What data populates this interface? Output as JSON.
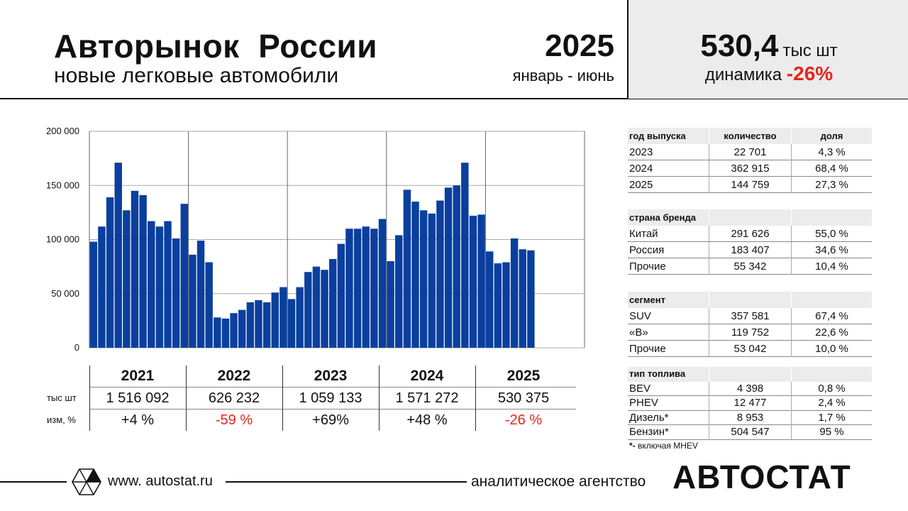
{
  "header": {
    "title": "Авторынок  России",
    "subtitle": "новые легковые автомобили",
    "year": "2025",
    "period": "январь - июнь",
    "total_value": "530,4",
    "total_unit": "тыс шт",
    "dynamics_label": "динамика ",
    "dynamics_value": "-26%"
  },
  "chart_data": {
    "type": "bar",
    "y_ticks": [
      "200 000",
      "150 000",
      "100 000",
      "50 000",
      "0"
    ],
    "ylim": [
      0,
      200000
    ],
    "grid": true,
    "year_groups": [
      "2021",
      "2022",
      "2023",
      "2024",
      "2025"
    ],
    "months_per_group": 12,
    "values": [
      98000,
      112000,
      139000,
      171000,
      127000,
      145000,
      141000,
      117000,
      112000,
      117000,
      101000,
      133000,
      86000,
      99000,
      79000,
      28000,
      27000,
      32000,
      35000,
      42000,
      44000,
      42000,
      51000,
      56000,
      45000,
      56000,
      70000,
      75000,
      72000,
      82000,
      96000,
      110000,
      110000,
      112000,
      110000,
      119000,
      80000,
      104000,
      146000,
      135000,
      127000,
      124000,
      136000,
      148000,
      150000,
      171000,
      122000,
      123000,
      89000,
      78000,
      79000,
      101000,
      91000,
      90000
    ]
  },
  "year_table": {
    "row_labels": [
      "тыс шт",
      "изм, %"
    ],
    "years": [
      "2021",
      "2022",
      "2023",
      "2024",
      "2025"
    ],
    "totals": [
      "1 516 092",
      "626 232",
      "1 059 133",
      "1 571 272",
      "530 375"
    ],
    "changes": [
      "+4 %",
      "-59 %",
      "+69%",
      "+48 %",
      "-26 %"
    ],
    "negative_color": "#e8231b"
  },
  "tables": {
    "model_year": {
      "headers": [
        "год выпуска",
        "количество",
        "доля"
      ],
      "rows": [
        [
          "2023",
          "22 701",
          "4,3 %"
        ],
        [
          "2024",
          "362 915",
          "68,4 %"
        ],
        [
          "2025",
          "144 759",
          "27,3 %"
        ]
      ]
    },
    "brand_country": {
      "headers": [
        "страна бренда",
        "",
        ""
      ],
      "rows": [
        [
          "Китай",
          "291 626",
          "55,0 %"
        ],
        [
          "Россия",
          "183 407",
          "34,6 %"
        ],
        [
          "Прочие",
          "55 342",
          "10,4 %"
        ]
      ]
    },
    "segment": {
      "headers": [
        "сегмент",
        "",
        ""
      ],
      "rows": [
        [
          "SUV",
          "357 581",
          "67,4 %"
        ],
        [
          "«В»",
          "119 752",
          "22,6 %"
        ],
        [
          "Прочие",
          "53 042",
          "10,0 %"
        ]
      ]
    },
    "fuel": {
      "headers": [
        "тип топлива",
        "",
        ""
      ],
      "rows": [
        [
          "BEV",
          "4 398",
          "0,8 %"
        ],
        [
          "PHEV",
          "12 477",
          "2,4 %"
        ],
        [
          "Дизель*",
          "8 953",
          "1,7 %"
        ],
        [
          "Бензин*",
          "504 547",
          "95 %"
        ]
      ]
    },
    "note_star": "*-",
    "note_text": " включая MHEV"
  },
  "footer": {
    "site": "www. autostat.ru",
    "agency": "аналитическое агентство",
    "brand": "АВТОСТАТ"
  },
  "colors": {
    "bar": "#0a3f9e",
    "accent_red": "#e8231b",
    "header_gray": "#ececec"
  }
}
